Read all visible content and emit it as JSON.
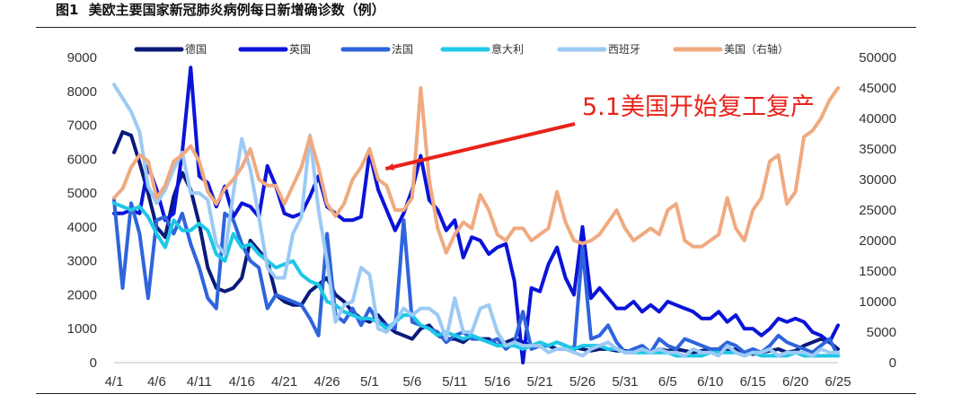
{
  "figure": {
    "number": "图1",
    "title": "美欧主要国家新冠肺炎病例每日新增确诊数（例）"
  },
  "chart_data": {
    "type": "line",
    "x": [
      "4/1",
      "4/2",
      "4/3",
      "4/4",
      "4/5",
      "4/6",
      "4/7",
      "4/8",
      "4/9",
      "4/10",
      "4/11",
      "4/12",
      "4/13",
      "4/14",
      "4/15",
      "4/16",
      "4/17",
      "4/18",
      "4/19",
      "4/20",
      "4/21",
      "4/22",
      "4/23",
      "4/24",
      "4/25",
      "4/26",
      "4/27",
      "4/28",
      "4/29",
      "4/30",
      "5/1",
      "5/2",
      "5/3",
      "5/4",
      "5/5",
      "5/6",
      "5/7",
      "5/8",
      "5/9",
      "5/10",
      "5/11",
      "5/12",
      "5/13",
      "5/14",
      "5/15",
      "5/16",
      "5/17",
      "5/18",
      "5/19",
      "5/20",
      "5/21",
      "5/22",
      "5/23",
      "5/24",
      "5/25",
      "5/26",
      "5/27",
      "5/28",
      "5/29",
      "5/30",
      "5/31",
      "6/1",
      "6/2",
      "6/3",
      "6/4",
      "6/5",
      "6/6",
      "6/7",
      "6/8",
      "6/9",
      "6/10",
      "6/11",
      "6/12",
      "6/13",
      "6/14",
      "6/15",
      "6/16",
      "6/17",
      "6/18",
      "6/19",
      "6/20",
      "6/21",
      "6/22",
      "6/23",
      "6/24",
      "6/25"
    ],
    "x_ticks": [
      "4/1",
      "4/6",
      "4/11",
      "4/16",
      "4/21",
      "4/26",
      "5/1",
      "5/6",
      "5/11",
      "5/16",
      "5/21",
      "5/26",
      "5/31",
      "6/5",
      "6/10",
      "6/15",
      "6/20",
      "6/25"
    ],
    "y_left": {
      "min": 0,
      "max": 9000,
      "ticks": [
        0,
        1000,
        2000,
        3000,
        4000,
        5000,
        6000,
        7000,
        8000,
        9000
      ]
    },
    "y_right": {
      "min": 0,
      "max": 50000,
      "ticks": [
        0,
        5000,
        10000,
        15000,
        20000,
        25000,
        30000,
        35000,
        40000,
        45000,
        50000
      ]
    },
    "legend_position": "top",
    "grid": false,
    "series": [
      {
        "name": "德国",
        "axis": "left",
        "color": "#0a1a7a",
        "values": [
          6200,
          6800,
          6700,
          5900,
          5000,
          4000,
          3700,
          4900,
          5600,
          5100,
          4100,
          2800,
          2200,
          2100,
          2200,
          2500,
          3600,
          3300,
          3000,
          2000,
          1800,
          1700,
          1700,
          2100,
          2300,
          2500,
          2000,
          1800,
          1500,
          1300,
          1200,
          1400,
          1100,
          900,
          800,
          700,
          1000,
          1100,
          800,
          700,
          700,
          600,
          800,
          700,
          700,
          500,
          600,
          700,
          600,
          500,
          500,
          500,
          400,
          400,
          450,
          400,
          350,
          400,
          400,
          350,
          350,
          300,
          350,
          300,
          400,
          350,
          400,
          350,
          300,
          350,
          400,
          350,
          350,
          400,
          300,
          250,
          300,
          350,
          400,
          300,
          350,
          500,
          600,
          700,
          600,
          400
        ]
      },
      {
        "name": "英国",
        "axis": "left",
        "color": "#0a14d8",
        "values": [
          4400,
          4400,
          4500,
          4400,
          5800,
          5100,
          4200,
          4400,
          6200,
          8700,
          5500,
          5300,
          4600,
          5200,
          4300,
          4700,
          4600,
          4300,
          5800,
          5200,
          4400,
          4300,
          4400,
          4900,
          5500,
          4600,
          4400,
          4200,
          4200,
          4300,
          6200,
          5100,
          4500,
          3900,
          4400,
          5100,
          6100,
          4800,
          4500,
          3900,
          4200,
          3100,
          3700,
          3600,
          3200,
          3400,
          3500,
          2400,
          0,
          2200,
          2100,
          2900,
          3400,
          2500,
          2000,
          4000,
          1900,
          2200,
          1900,
          1600,
          1600,
          1800,
          1500,
          1700,
          1500,
          1800,
          1700,
          1600,
          1500,
          1300,
          1300,
          1500,
          1200,
          1400,
          1000,
          1000,
          800,
          1000,
          1300,
          1200,
          1300,
          1200,
          900,
          800,
          600,
          1100
        ]
      },
      {
        "name": "法国",
        "axis": "left",
        "color": "#2e64dc",
        "values": [
          4800,
          2200,
          4700,
          3800,
          1900,
          4200,
          4300,
          3800,
          4400,
          3500,
          2800,
          1900,
          1600,
          4400,
          4200,
          3500,
          3000,
          2800,
          1600,
          2000,
          1900,
          1800,
          1700,
          1300,
          800,
          3800,
          1400,
          1200,
          1600,
          1100,
          1600,
          1200,
          1100,
          1000,
          4200,
          1200,
          1100,
          1000,
          900,
          600,
          800,
          900,
          700,
          700,
          600,
          700,
          400,
          600,
          1500,
          400,
          500,
          500,
          600,
          500,
          300,
          3400,
          700,
          800,
          1100,
          600,
          300,
          400,
          500,
          300,
          700,
          500,
          400,
          700,
          600,
          500,
          400,
          400,
          600,
          500,
          300,
          400,
          300,
          500,
          800,
          600,
          500,
          400,
          300,
          500,
          700,
          200
        ]
      },
      {
        "name": "意大利",
        "axis": "left",
        "color": "#1ec8e6",
        "values": [
          4700,
          4600,
          4500,
          4600,
          4300,
          3800,
          3400,
          4200,
          3900,
          3900,
          4100,
          3900,
          3200,
          3000,
          3800,
          3400,
          3500,
          3200,
          3000,
          2800,
          2900,
          3000,
          2600,
          2400,
          2300,
          1800,
          1700,
          1500,
          1400,
          1300,
          1300,
          1200,
          1000,
          1200,
          1400,
          1400,
          1100,
          1000,
          800,
          900,
          800,
          700,
          800,
          700,
          600,
          500,
          500,
          500,
          400,
          500,
          600,
          500,
          600,
          500,
          400,
          500,
          500,
          500,
          400,
          400,
          300,
          300,
          300,
          300,
          300,
          300,
          200,
          200,
          200,
          200,
          300,
          300,
          300,
          300,
          200,
          300,
          200,
          200,
          200,
          200,
          300,
          200,
          200,
          200,
          200,
          200
        ]
      },
      {
        "name": "西班牙",
        "axis": "left",
        "color": "#9ccaf4",
        "values": [
          8200,
          7800,
          7400,
          6800,
          5200,
          4700,
          5100,
          5700,
          6200,
          5000,
          5000,
          4800,
          3500,
          3200,
          5000,
          6600,
          5700,
          4300,
          2800,
          2500,
          2500,
          3800,
          4300,
          6700,
          4500,
          3000,
          1200,
          1700,
          1800,
          2800,
          2600,
          1000,
          900,
          1200,
          1600,
          1400,
          1600,
          1600,
          1400,
          700,
          1900,
          900,
          900,
          1600,
          1700,
          900,
          500,
          600,
          500,
          500,
          500,
          300,
          400,
          400,
          300,
          200,
          400,
          500,
          600,
          400,
          300,
          300,
          400,
          300,
          400,
          300,
          300,
          200,
          400,
          300,
          300,
          200,
          500,
          300,
          200,
          300,
          300,
          400,
          200,
          300,
          300,
          300,
          200,
          400,
          300,
          300
        ]
      },
      {
        "name": "美国（右轴）",
        "axis": "right",
        "color": "#f0aa80",
        "values": [
          27000,
          28500,
          32000,
          34000,
          33000,
          27000,
          29000,
          33000,
          34000,
          35500,
          33000,
          28000,
          26000,
          28500,
          30000,
          32000,
          35000,
          30000,
          29000,
          29000,
          26000,
          29000,
          32000,
          37000,
          32000,
          26000,
          24000,
          26000,
          30000,
          32000,
          35000,
          30000,
          29000,
          25000,
          25000,
          27000,
          45000,
          30000,
          22000,
          18000,
          21000,
          23000,
          22000,
          27500,
          25000,
          21000,
          20000,
          22000,
          22000,
          20000,
          21000,
          22000,
          28000,
          23000,
          20000,
          19500,
          20000,
          21000,
          23000,
          25000,
          22000,
          20000,
          21000,
          22000,
          21000,
          25000,
          26000,
          20000,
          19000,
          19000,
          20000,
          21000,
          27000,
          22000,
          20000,
          25000,
          27000,
          33000,
          34000,
          26000,
          28000,
          37000,
          38000,
          40000,
          43000,
          45000
        ]
      }
    ],
    "annotation": {
      "text": "5.1美国开始复工复产",
      "points_to": "5/1"
    }
  }
}
